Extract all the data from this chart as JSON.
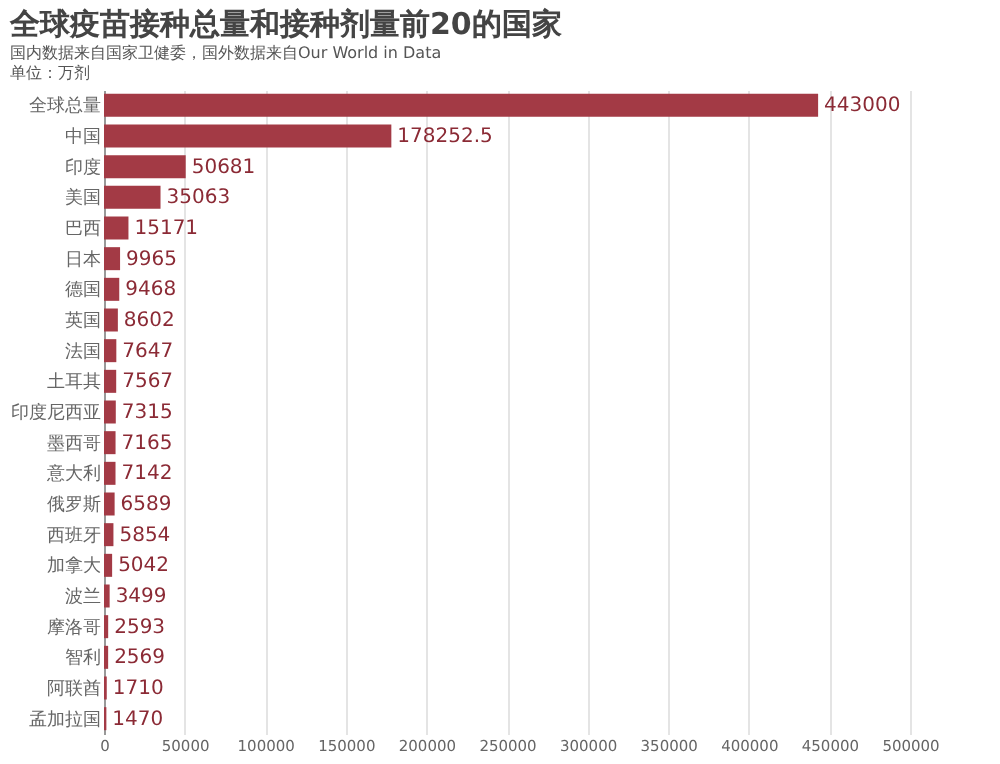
{
  "chart_data": {
    "type": "bar",
    "orientation": "horizontal",
    "title": "全球疫苗接种总量和接种剂量前20的国家",
    "subtitle": "国内数据来自国家卫健委，国外数据来自Our World in Data",
    "annotations": [
      "单位：万剂"
    ],
    "categories": [
      "全球总量",
      "中国",
      "印度",
      "美国",
      "巴西",
      "日本",
      "德国",
      "英国",
      "法国",
      "土耳其",
      "印度尼西亚",
      "墨西哥",
      "意大利",
      "俄罗斯",
      "西班牙",
      "加拿大",
      "波兰",
      "摩洛哥",
      "智利",
      "阿联酋",
      "孟加拉国"
    ],
    "values": [
      443000,
      178252.5,
      50681,
      35063,
      15171,
      9965,
      9468,
      8602,
      7647,
      7567,
      7315,
      7165,
      7142,
      6589,
      5854,
      5042,
      3499,
      2593,
      2569,
      1710,
      1470
    ],
    "color": "#a33a45",
    "data_labels": true,
    "xlim": [
      0,
      500000
    ],
    "xticks": [
      0,
      50000,
      100000,
      150000,
      200000,
      250000,
      300000,
      350000,
      400000,
      450000,
      500000
    ],
    "grid": "x"
  }
}
